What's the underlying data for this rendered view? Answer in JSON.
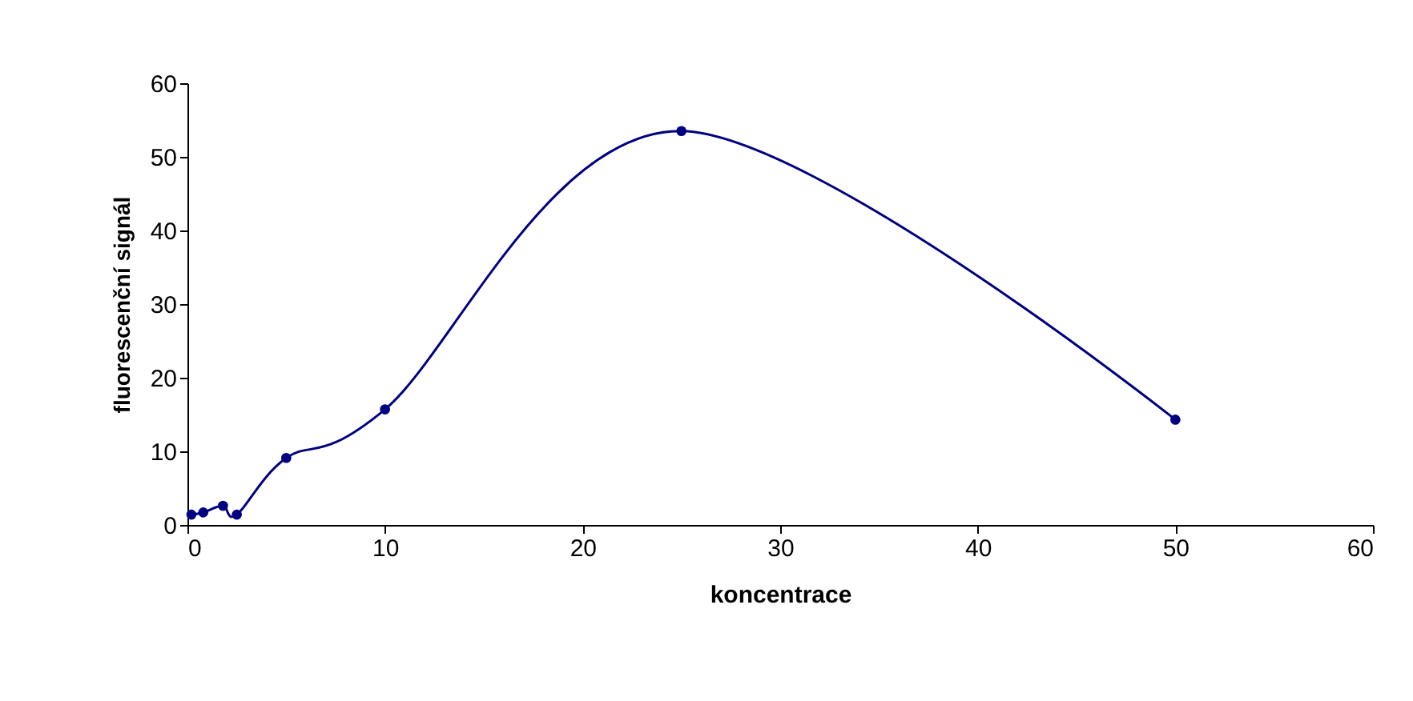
{
  "chart_data": {
    "type": "line",
    "xlabel": "koncentrace",
    "ylabel": "fluorescenční signál",
    "x": [
      0.2,
      0.8,
      1.8,
      2.5,
      5,
      10,
      25,
      50
    ],
    "series": [
      {
        "color": "#000080",
        "values": [
          1.4,
          1.7,
          2.6,
          1.4,
          9.1,
          15.7,
          53.5,
          14.3
        ]
      }
    ],
    "xlim": [
      0,
      60
    ],
    "xticks": [
      0,
      10,
      20,
      30,
      40,
      50,
      60
    ],
    "ylim": [
      0,
      60
    ],
    "yticks": [
      0,
      10,
      20,
      30,
      40,
      50,
      60
    ],
    "grid": false,
    "marker": "circle",
    "line_style": "solid"
  }
}
